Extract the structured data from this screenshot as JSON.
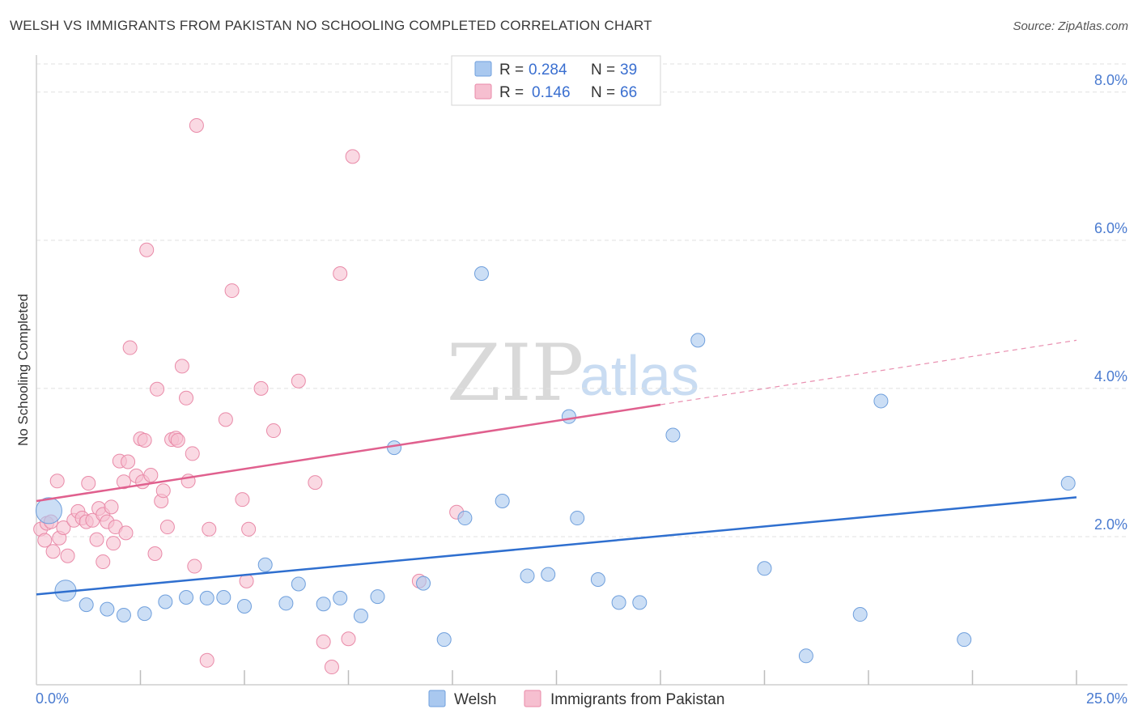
{
  "header": {
    "title": "WELSH VS IMMIGRANTS FROM PAKISTAN NO SCHOOLING COMPLETED CORRELATION CHART",
    "source": "Source: ZipAtlas.com"
  },
  "watermark": {
    "zip": "ZIP",
    "atlas": "atlas"
  },
  "colors": {
    "welsh_fill": "#a9c8ef",
    "welsh_stroke": "#6f9fdc",
    "welsh_line": "#2f6fcf",
    "pak_fill": "#f6bfd0",
    "pak_stroke": "#e98aa8",
    "pak_line": "#e0608e",
    "tick_label": "#4a7bd0",
    "grid": "#e0e0e0"
  },
  "legend": {
    "r_label": "R =",
    "n_label": "N =",
    "rows": [
      {
        "series": "Welsh",
        "r": "0.284",
        "n": "39"
      },
      {
        "series": "Immigrants from Pakistan",
        "r": "0.146",
        "n": "66"
      }
    ]
  },
  "chart_data": {
    "type": "scatter",
    "title": "WELSH VS IMMIGRANTS FROM PAKISTAN NO SCHOOLING COMPLETED CORRELATION CHART",
    "xlabel": "",
    "ylabel": "No Schooling Completed",
    "xlim": [
      0,
      25
    ],
    "ylim": [
      0,
      8.5
    ],
    "x_tick_labels": [
      "0.0%",
      "25.0%"
    ],
    "y_ticks": [
      2,
      4,
      6,
      8
    ],
    "y_tick_labels": [
      "2.0%",
      "4.0%",
      "6.0%",
      "8.0%"
    ],
    "x_minor_ticks": [
      2.5,
      5,
      7.5,
      10,
      12.5,
      15,
      17.5,
      20,
      22.5,
      25
    ],
    "grid": true,
    "legend_position": "top-center",
    "series": [
      {
        "name": "Welsh",
        "r": 0.284,
        "n": 39,
        "trend": {
          "x": [
            0,
            25
          ],
          "y": [
            1.22,
            2.53
          ],
          "dashed_to": null
        },
        "points": [
          {
            "x": 0.3,
            "y": 2.35,
            "size": "large"
          },
          {
            "x": 0.7,
            "y": 1.27,
            "size": "medium"
          },
          {
            "x": 1.2,
            "y": 1.08
          },
          {
            "x": 1.7,
            "y": 1.02
          },
          {
            "x": 2.1,
            "y": 0.94
          },
          {
            "x": 2.6,
            "y": 0.96
          },
          {
            "x": 3.1,
            "y": 1.12
          },
          {
            "x": 3.6,
            "y": 1.18
          },
          {
            "x": 4.1,
            "y": 1.17
          },
          {
            "x": 4.5,
            "y": 1.18
          },
          {
            "x": 5.0,
            "y": 1.06
          },
          {
            "x": 5.5,
            "y": 1.62
          },
          {
            "x": 6.0,
            "y": 1.1
          },
          {
            "x": 6.3,
            "y": 1.36
          },
          {
            "x": 6.9,
            "y": 1.09
          },
          {
            "x": 7.3,
            "y": 1.17
          },
          {
            "x": 7.8,
            "y": 0.93
          },
          {
            "x": 8.2,
            "y": 1.19
          },
          {
            "x": 8.6,
            "y": 3.2
          },
          {
            "x": 9.3,
            "y": 1.37
          },
          {
            "x": 9.8,
            "y": 0.61
          },
          {
            "x": 10.3,
            "y": 2.25
          },
          {
            "x": 10.7,
            "y": 5.55
          },
          {
            "x": 11.2,
            "y": 2.48
          },
          {
            "x": 11.8,
            "y": 1.47
          },
          {
            "x": 12.3,
            "y": 1.49
          },
          {
            "x": 12.8,
            "y": 3.62
          },
          {
            "x": 13.0,
            "y": 2.25
          },
          {
            "x": 13.5,
            "y": 1.42
          },
          {
            "x": 14.0,
            "y": 1.11
          },
          {
            "x": 14.5,
            "y": 1.11
          },
          {
            "x": 15.3,
            "y": 3.37
          },
          {
            "x": 15.9,
            "y": 4.65
          },
          {
            "x": 17.5,
            "y": 1.57
          },
          {
            "x": 18.5,
            "y": 0.39
          },
          {
            "x": 19.8,
            "y": 0.95
          },
          {
            "x": 20.3,
            "y": 3.83
          },
          {
            "x": 22.3,
            "y": 0.61
          },
          {
            "x": 24.8,
            "y": 2.72
          }
        ]
      },
      {
        "name": "Immigrants from Pakistan",
        "r": 0.146,
        "n": 66,
        "trend": {
          "x": [
            0,
            15
          ],
          "y": [
            2.48,
            3.78
          ],
          "dashed_to": {
            "x": 25,
            "y": 4.65
          }
        },
        "points": [
          {
            "x": 0.1,
            "y": 2.1
          },
          {
            "x": 0.2,
            "y": 1.95
          },
          {
            "x": 0.25,
            "y": 2.18
          },
          {
            "x": 0.35,
            "y": 2.2
          },
          {
            "x": 0.4,
            "y": 1.8
          },
          {
            "x": 0.5,
            "y": 2.75
          },
          {
            "x": 0.55,
            "y": 1.98
          },
          {
            "x": 0.65,
            "y": 2.12
          },
          {
            "x": 0.75,
            "y": 1.74
          },
          {
            "x": 0.9,
            "y": 2.22
          },
          {
            "x": 1.0,
            "y": 2.34
          },
          {
            "x": 1.1,
            "y": 2.25
          },
          {
            "x": 1.2,
            "y": 2.2
          },
          {
            "x": 1.25,
            "y": 2.72
          },
          {
            "x": 1.35,
            "y": 2.22
          },
          {
            "x": 1.45,
            "y": 1.96
          },
          {
            "x": 1.5,
            "y": 2.38
          },
          {
            "x": 1.6,
            "y": 2.3
          },
          {
            "x": 1.6,
            "y": 1.66
          },
          {
            "x": 1.7,
            "y": 2.2
          },
          {
            "x": 1.8,
            "y": 2.4
          },
          {
            "x": 1.85,
            "y": 1.91
          },
          {
            "x": 1.9,
            "y": 2.13
          },
          {
            "x": 2.0,
            "y": 3.02
          },
          {
            "x": 2.1,
            "y": 2.74
          },
          {
            "x": 2.15,
            "y": 2.05
          },
          {
            "x": 2.2,
            "y": 3.01
          },
          {
            "x": 2.25,
            "y": 4.55
          },
          {
            "x": 2.4,
            "y": 2.82
          },
          {
            "x": 2.5,
            "y": 3.32
          },
          {
            "x": 2.55,
            "y": 2.74
          },
          {
            "x": 2.6,
            "y": 3.3
          },
          {
            "x": 2.65,
            "y": 5.87
          },
          {
            "x": 2.75,
            "y": 2.83
          },
          {
            "x": 2.85,
            "y": 1.77
          },
          {
            "x": 2.9,
            "y": 3.99
          },
          {
            "x": 3.0,
            "y": 2.48
          },
          {
            "x": 3.05,
            "y": 2.62
          },
          {
            "x": 3.15,
            "y": 2.13
          },
          {
            "x": 3.25,
            "y": 3.31
          },
          {
            "x": 3.35,
            "y": 3.33
          },
          {
            "x": 3.4,
            "y": 3.3
          },
          {
            "x": 3.5,
            "y": 4.3
          },
          {
            "x": 3.6,
            "y": 3.87
          },
          {
            "x": 3.65,
            "y": 2.75
          },
          {
            "x": 3.75,
            "y": 3.12
          },
          {
            "x": 3.8,
            "y": 1.6
          },
          {
            "x": 3.85,
            "y": 7.55
          },
          {
            "x": 4.1,
            "y": 0.33
          },
          {
            "x": 4.15,
            "y": 2.1
          },
          {
            "x": 4.55,
            "y": 3.58
          },
          {
            "x": 4.7,
            "y": 5.32
          },
          {
            "x": 4.95,
            "y": 2.5
          },
          {
            "x": 5.05,
            "y": 1.4
          },
          {
            "x": 5.1,
            "y": 2.1
          },
          {
            "x": 5.4,
            "y": 4.0
          },
          {
            "x": 5.7,
            "y": 3.43
          },
          {
            "x": 6.3,
            "y": 4.1
          },
          {
            "x": 6.7,
            "y": 2.73
          },
          {
            "x": 6.9,
            "y": 0.58
          },
          {
            "x": 7.1,
            "y": 0.24
          },
          {
            "x": 7.3,
            "y": 5.55
          },
          {
            "x": 7.5,
            "y": 0.62
          },
          {
            "x": 7.6,
            "y": 7.13
          },
          {
            "x": 9.2,
            "y": 1.4
          },
          {
            "x": 10.1,
            "y": 2.33
          }
        ]
      }
    ]
  },
  "bottom_legend": [
    {
      "series": "Welsh"
    },
    {
      "series": "Immigrants from Pakistan"
    }
  ]
}
